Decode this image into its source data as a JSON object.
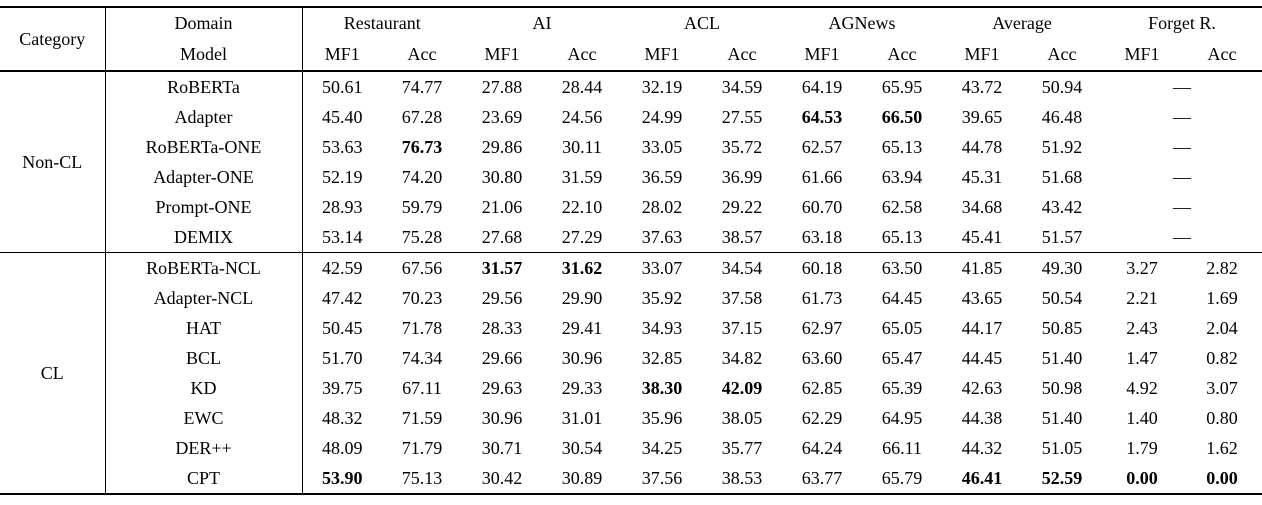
{
  "table": {
    "header": {
      "category": "Category",
      "domain": "Domain",
      "model": "Model",
      "groups": [
        "Restaurant",
        "AI",
        "ACL",
        "AGNews",
        "Average",
        "Forget R."
      ],
      "metric_mf1": "MF1",
      "metric_acc": "Acc"
    },
    "forget_placeholder": "—",
    "groups": [
      {
        "category": "Non-CL",
        "rows": [
          {
            "model": "RoBERTa",
            "values": [
              "50.61",
              "74.77",
              "27.88",
              "28.44",
              "32.19",
              "34.59",
              "64.19",
              "65.95",
              "43.72",
              "50.94"
            ],
            "bold": [],
            "forget_dash": true
          },
          {
            "model": "Adapter",
            "values": [
              "45.40",
              "67.28",
              "23.69",
              "24.56",
              "24.99",
              "27.55",
              "64.53",
              "66.50",
              "39.65",
              "46.48"
            ],
            "bold": [
              6,
              7
            ],
            "forget_dash": true
          },
          {
            "model": "RoBERTa-ONE",
            "values": [
              "53.63",
              "76.73",
              "29.86",
              "30.11",
              "33.05",
              "35.72",
              "62.57",
              "65.13",
              "44.78",
              "51.92"
            ],
            "bold": [
              1
            ],
            "forget_dash": true
          },
          {
            "model": "Adapter-ONE",
            "values": [
              "52.19",
              "74.20",
              "30.80",
              "31.59",
              "36.59",
              "36.99",
              "61.66",
              "63.94",
              "45.31",
              "51.68"
            ],
            "bold": [],
            "forget_dash": true
          },
          {
            "model": "Prompt-ONE",
            "values": [
              "28.93",
              "59.79",
              "21.06",
              "22.10",
              "28.02",
              "29.22",
              "60.70",
              "62.58",
              "34.68",
              "43.42"
            ],
            "bold": [],
            "forget_dash": true
          },
          {
            "model": "DEMIX",
            "values": [
              "53.14",
              "75.28",
              "27.68",
              "27.29",
              "37.63",
              "38.57",
              "63.18",
              "65.13",
              "45.41",
              "51.57"
            ],
            "bold": [],
            "forget_dash": true
          }
        ]
      },
      {
        "category": "CL",
        "rows": [
          {
            "model": "RoBERTa-NCL",
            "values": [
              "42.59",
              "67.56",
              "31.57",
              "31.62",
              "33.07",
              "34.54",
              "60.18",
              "63.50",
              "41.85",
              "49.30",
              "3.27",
              "2.82"
            ],
            "bold": [
              2,
              3
            ],
            "forget_dash": false
          },
          {
            "model": "Adapter-NCL",
            "values": [
              "47.42",
              "70.23",
              "29.56",
              "29.90",
              "35.92",
              "37.58",
              "61.73",
              "64.45",
              "43.65",
              "50.54",
              "2.21",
              "1.69"
            ],
            "bold": [],
            "forget_dash": false
          },
          {
            "model": "HAT",
            "values": [
              "50.45",
              "71.78",
              "28.33",
              "29.41",
              "34.93",
              "37.15",
              "62.97",
              "65.05",
              "44.17",
              "50.85",
              "2.43",
              "2.04"
            ],
            "bold": [],
            "forget_dash": false
          },
          {
            "model": "BCL",
            "values": [
              "51.70",
              "74.34",
              "29.66",
              "30.96",
              "32.85",
              "34.82",
              "63.60",
              "65.47",
              "44.45",
              "51.40",
              "1.47",
              "0.82"
            ],
            "bold": [],
            "forget_dash": false
          },
          {
            "model": "KD",
            "values": [
              "39.75",
              "67.11",
              "29.63",
              "29.33",
              "38.30",
              "42.09",
              "62.85",
              "65.39",
              "42.63",
              "50.98",
              "4.92",
              "3.07"
            ],
            "bold": [
              4,
              5
            ],
            "forget_dash": false
          },
          {
            "model": "EWC",
            "values": [
              "48.32",
              "71.59",
              "30.96",
              "31.01",
              "35.96",
              "38.05",
              "62.29",
              "64.95",
              "44.38",
              "51.40",
              "1.40",
              "0.80"
            ],
            "bold": [],
            "forget_dash": false
          },
          {
            "model": "DER++",
            "values": [
              "48.09",
              "71.79",
              "30.71",
              "30.54",
              "34.25",
              "35.77",
              "64.24",
              "66.11",
              "44.32",
              "51.05",
              "1.79",
              "1.62"
            ],
            "bold": [],
            "forget_dash": false
          },
          {
            "model": "CPT",
            "values": [
              "53.90",
              "75.13",
              "30.42",
              "30.89",
              "37.56",
              "38.53",
              "63.77",
              "65.79",
              "46.41",
              "52.59",
              "0.00",
              "0.00"
            ],
            "bold": [
              0,
              8,
              9,
              10,
              11
            ],
            "forget_dash": false
          }
        ]
      }
    ]
  }
}
